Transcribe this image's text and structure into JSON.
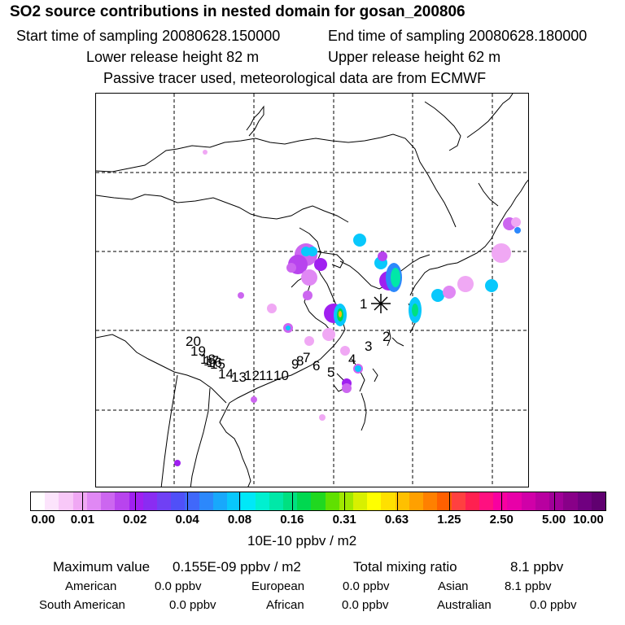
{
  "header": {
    "title": "SO2 source contributions in nested domain for gosan_200806",
    "start_time": "Start time of sampling 20080628.150000",
    "end_time": "End time of sampling 20080628.180000",
    "lower_release": "Lower release height   82 m",
    "upper_release": "Upper release height   62 m",
    "tracer_note": "Passive tracer used, meteorological data are from ECMWF"
  },
  "map": {
    "receptor_marker": "asterisk-icon",
    "trajectory_labels": [
      "1",
      "2",
      "3",
      "4",
      "5",
      "6",
      "7",
      "8",
      "9",
      "10",
      "11",
      "12",
      "13",
      "14",
      "15",
      "16",
      "17",
      "18",
      "19",
      "20"
    ]
  },
  "legend": {
    "ticks": [
      "0.00",
      "0.01",
      "0.02",
      "0.04",
      "0.08",
      "0.16",
      "0.31",
      "0.63",
      "1.25",
      "2.50",
      "5.00",
      "10.00"
    ],
    "colors": [
      "#ffffff",
      "#fce4fc",
      "#f8c8f8",
      "#f0a8f4",
      "#e088f4",
      "#cc66f0",
      "#b844ee",
      "#a020f0",
      "#8a2cf2",
      "#7040f4",
      "#5050f8",
      "#4068fa",
      "#2c88fc",
      "#18a8fc",
      "#08c8fc",
      "#00e8f8",
      "#00f0d0",
      "#00e8a8",
      "#00e080",
      "#00d850",
      "#20d820",
      "#60e000",
      "#a0e800",
      "#d8f000",
      "#ffff00",
      "#ffe000",
      "#ffc000",
      "#ffa000",
      "#ff8000",
      "#ff6000",
      "#ff4040",
      "#ff2050",
      "#ff1080",
      "#f800a0",
      "#e800a8",
      "#d000a8",
      "#b800a0",
      "#a00098",
      "#880088",
      "#700080",
      "#600070"
    ],
    "unit": "10E-10 ppbv / m2"
  },
  "stats": {
    "max_label": "Maximum value",
    "max_value": "0.155E-09 ppbv / m2",
    "total_label": "Total mixing ratio",
    "total_value": "8.1 ppbv",
    "regions": [
      {
        "name": "American",
        "value": "0.0 ppbv"
      },
      {
        "name": "European",
        "value": "0.0 ppbv"
      },
      {
        "name": "Asian",
        "value": "8.1 ppbv"
      },
      {
        "name": "South American",
        "value": "0.0 ppbv"
      },
      {
        "name": "African",
        "value": "0.0 ppbv"
      },
      {
        "name": "Australian",
        "value": "0.0 ppbv"
      }
    ]
  }
}
